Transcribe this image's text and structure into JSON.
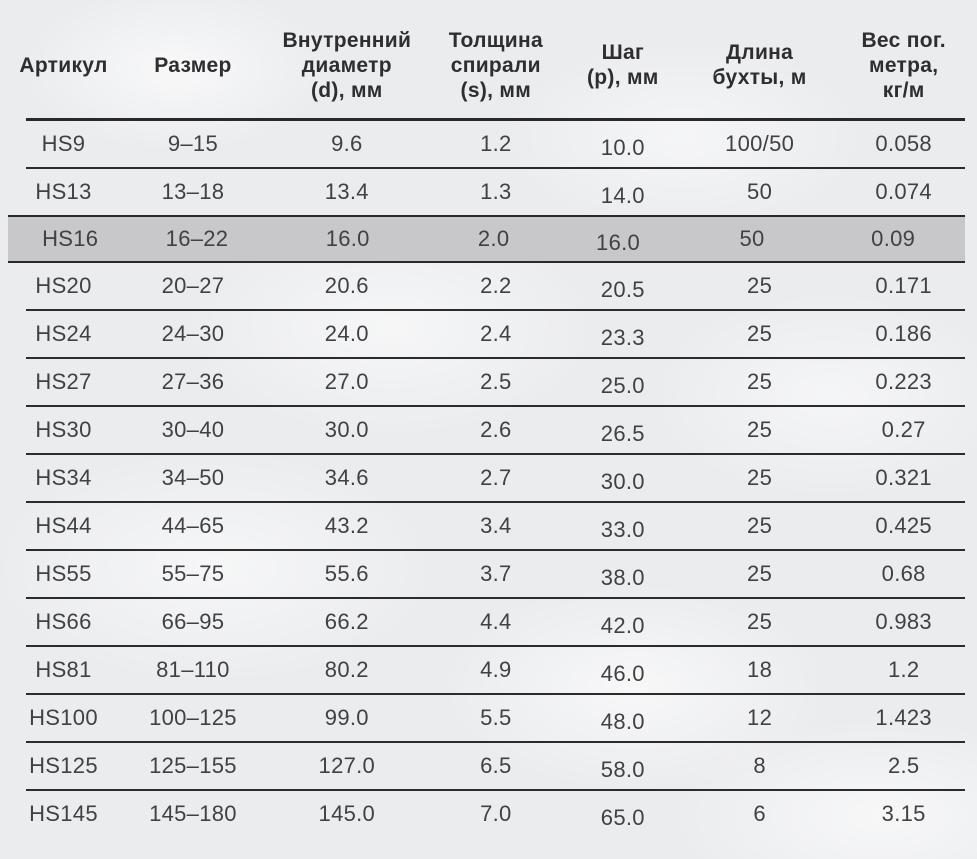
{
  "page": {
    "background_color": "#ebecee",
    "text_color": "#414144",
    "line_color": "#29292b",
    "highlight_row_color": "#c8c8ca"
  },
  "table": {
    "headers": [
      "Артикул",
      "Размер",
      "Внутренний\nдиаметр\n(d), мм",
      "Толщина\nспирали\n(s), мм",
      "Шаг\n(p), мм",
      "Длина\nбухты, м",
      "Вес пог.\nметра,\nкг/м"
    ],
    "rows": [
      {
        "highlighted": false,
        "cells": [
          "HS9",
          "9–15",
          "9.6",
          "1.2",
          "10.0",
          "100/50",
          "0.058"
        ]
      },
      {
        "highlighted": false,
        "cells": [
          "HS13",
          "13–18",
          "13.4",
          "1.3",
          "14.0",
          "50",
          "0.074"
        ]
      },
      {
        "highlighted": true,
        "cells": [
          "HS16",
          "16–22",
          "16.0",
          "2.0",
          "16.0",
          "50",
          "0.09"
        ]
      },
      {
        "highlighted": false,
        "cells": [
          "HS20",
          "20–27",
          "20.6",
          "2.2",
          "20.5",
          "25",
          "0.171"
        ]
      },
      {
        "highlighted": false,
        "cells": [
          "HS24",
          "24–30",
          "24.0",
          "2.4",
          "23.3",
          "25",
          "0.186"
        ]
      },
      {
        "highlighted": false,
        "cells": [
          "HS27",
          "27–36",
          "27.0",
          "2.5",
          "25.0",
          "25",
          "0.223"
        ]
      },
      {
        "highlighted": false,
        "cells": [
          "HS30",
          "30–40",
          "30.0",
          "2.6",
          "26.5",
          "25",
          "0.27"
        ]
      },
      {
        "highlighted": false,
        "cells": [
          "HS34",
          "34–50",
          "34.6",
          "2.7",
          "30.0",
          "25",
          "0.321"
        ]
      },
      {
        "highlighted": false,
        "cells": [
          "HS44",
          "44–65",
          "43.2",
          "3.4",
          "33.0",
          "25",
          "0.425"
        ]
      },
      {
        "highlighted": false,
        "cells": [
          "HS55",
          "55–75",
          "55.6",
          "3.7",
          "38.0",
          "25",
          "0.68"
        ]
      },
      {
        "highlighted": false,
        "cells": [
          "HS66",
          "66–95",
          "66.2",
          "4.4",
          "42.0",
          "25",
          "0.983"
        ]
      },
      {
        "highlighted": false,
        "cells": [
          "HS81",
          "81–110",
          "80.2",
          "4.9",
          "46.0",
          "18",
          "1.2"
        ]
      },
      {
        "highlighted": false,
        "cells": [
          "HS100",
          "100–125",
          "99.0",
          "5.5",
          "48.0",
          "12",
          "1.423"
        ]
      },
      {
        "highlighted": false,
        "cells": [
          "HS125",
          "125–155",
          "127.0",
          "6.5",
          "58.0",
          "8",
          "2.5"
        ]
      },
      {
        "highlighted": false,
        "cells": [
          "HS145",
          "145–180",
          "145.0",
          "7.0",
          "65.0",
          "6",
          "3.15"
        ]
      }
    ]
  }
}
